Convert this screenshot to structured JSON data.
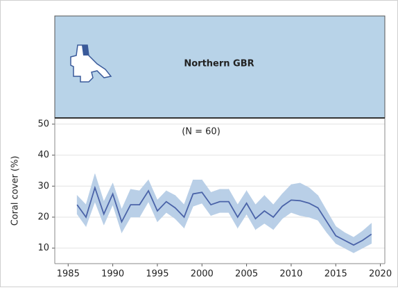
{
  "chart_data": {
    "type": "line",
    "title": "Northern GBR",
    "annotation": "(N = 60)",
    "ylabel": "Coral cover (%)",
    "x": [
      1986,
      1987,
      1988,
      1989,
      1990,
      1991,
      1992,
      1993,
      1994,
      1995,
      1996,
      1997,
      1998,
      1999,
      2000,
      2001,
      2002,
      2003,
      2004,
      2005,
      2006,
      2007,
      2008,
      2009,
      2010,
      2011,
      2012,
      2013,
      2014,
      2015,
      2016,
      2017,
      2018,
      2019
    ],
    "values": [
      24,
      20,
      29.5,
      21,
      27.5,
      18.5,
      24,
      24,
      28.5,
      22,
      25,
      23,
      20,
      27.5,
      28,
      24,
      25,
      25,
      20,
      24.5,
      19.5,
      22,
      20,
      23.5,
      25.5,
      25.3,
      24.5,
      23,
      18.5,
      14,
      12.5,
      11,
      12.5,
      14.5
    ],
    "color": "#4a63a8",
    "band": {
      "color": "#b9cfe7",
      "upper": [
        27,
        24,
        34,
        25,
        31,
        22.5,
        29,
        28.5,
        32,
        25.5,
        28.5,
        27,
        24,
        32,
        32,
        28,
        29,
        29,
        24,
        28.5,
        24,
        27,
        24,
        27.5,
        30.5,
        31,
        29.5,
        27,
        22,
        17,
        15,
        13.5,
        15.5,
        18
      ],
      "lower": [
        21,
        17,
        25,
        17.5,
        24,
        15,
        20,
        20,
        25,
        18.5,
        21.5,
        19.5,
        16.5,
        23.5,
        24.5,
        20.5,
        21.5,
        21.5,
        16.5,
        21,
        16,
        18,
        16,
        19.5,
        21.5,
        20.5,
        20,
        19,
        15,
        11.5,
        10,
        8.5,
        10,
        11.5
      ]
    },
    "xlim": [
      1983.5,
      2020.5
    ],
    "xticks": [
      1985,
      1990,
      1995,
      2000,
      2005,
      2010,
      2015,
      2020
    ],
    "ylim": [
      5,
      52
    ],
    "yticks": [
      10,
      20,
      30,
      40,
      50
    ],
    "grid": true
  }
}
